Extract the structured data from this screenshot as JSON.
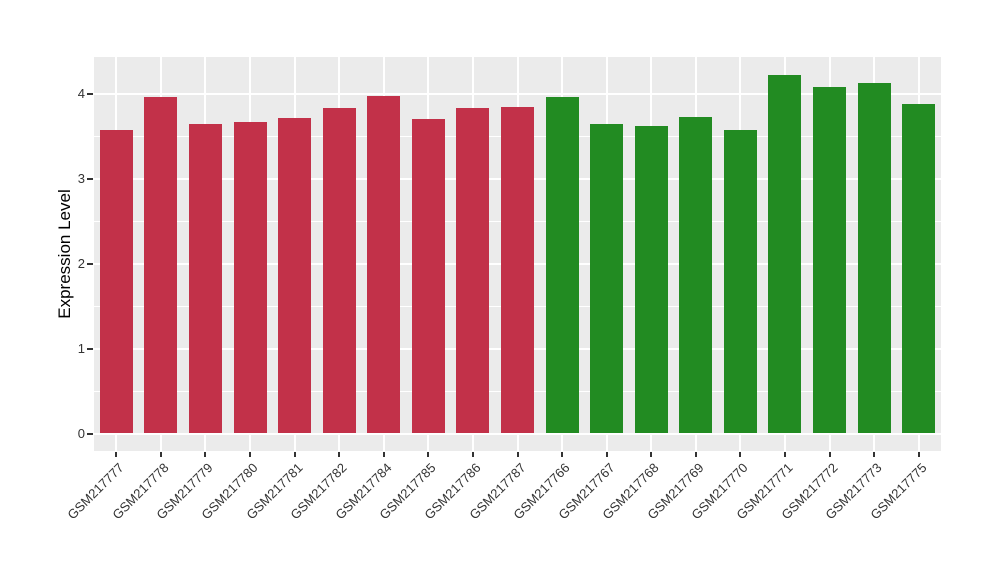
{
  "chart_data": {
    "type": "bar",
    "title": "",
    "xlabel": "",
    "ylabel": "Expression Level",
    "categories": [
      "GSM217777",
      "GSM217778",
      "GSM217779",
      "GSM217780",
      "GSM217781",
      "GSM217782",
      "GSM217784",
      "GSM217785",
      "GSM217786",
      "GSM217787",
      "GSM217766",
      "GSM217767",
      "GSM217768",
      "GSM217769",
      "GSM217770",
      "GSM217771",
      "GSM217772",
      "GSM217773",
      "GSM217775"
    ],
    "values": [
      3.57,
      3.96,
      3.65,
      3.67,
      3.72,
      3.83,
      3.97,
      3.7,
      3.83,
      3.84,
      3.96,
      3.64,
      3.62,
      3.73,
      3.57,
      4.22,
      4.08,
      4.13,
      3.88
    ],
    "bar_groups": [
      "red",
      "red",
      "red",
      "red",
      "red",
      "red",
      "red",
      "red",
      "red",
      "red",
      "green",
      "green",
      "green",
      "green",
      "green",
      "green",
      "green",
      "green",
      "green"
    ],
    "group_colors": {
      "red": "#C23149",
      "green": "#228B22"
    },
    "yticks": [
      0,
      1,
      2,
      3,
      4
    ],
    "minor_yticks": [
      0.5,
      1.5,
      2.5,
      3.5
    ],
    "ylim": [
      -0.21,
      4.44
    ],
    "grid": true,
    "legend": "none",
    "x_label_angle": 45,
    "panel_bg": "#EBEBEB",
    "grid_color": "#FFFFFF",
    "axis_text_color": "#333333"
  }
}
